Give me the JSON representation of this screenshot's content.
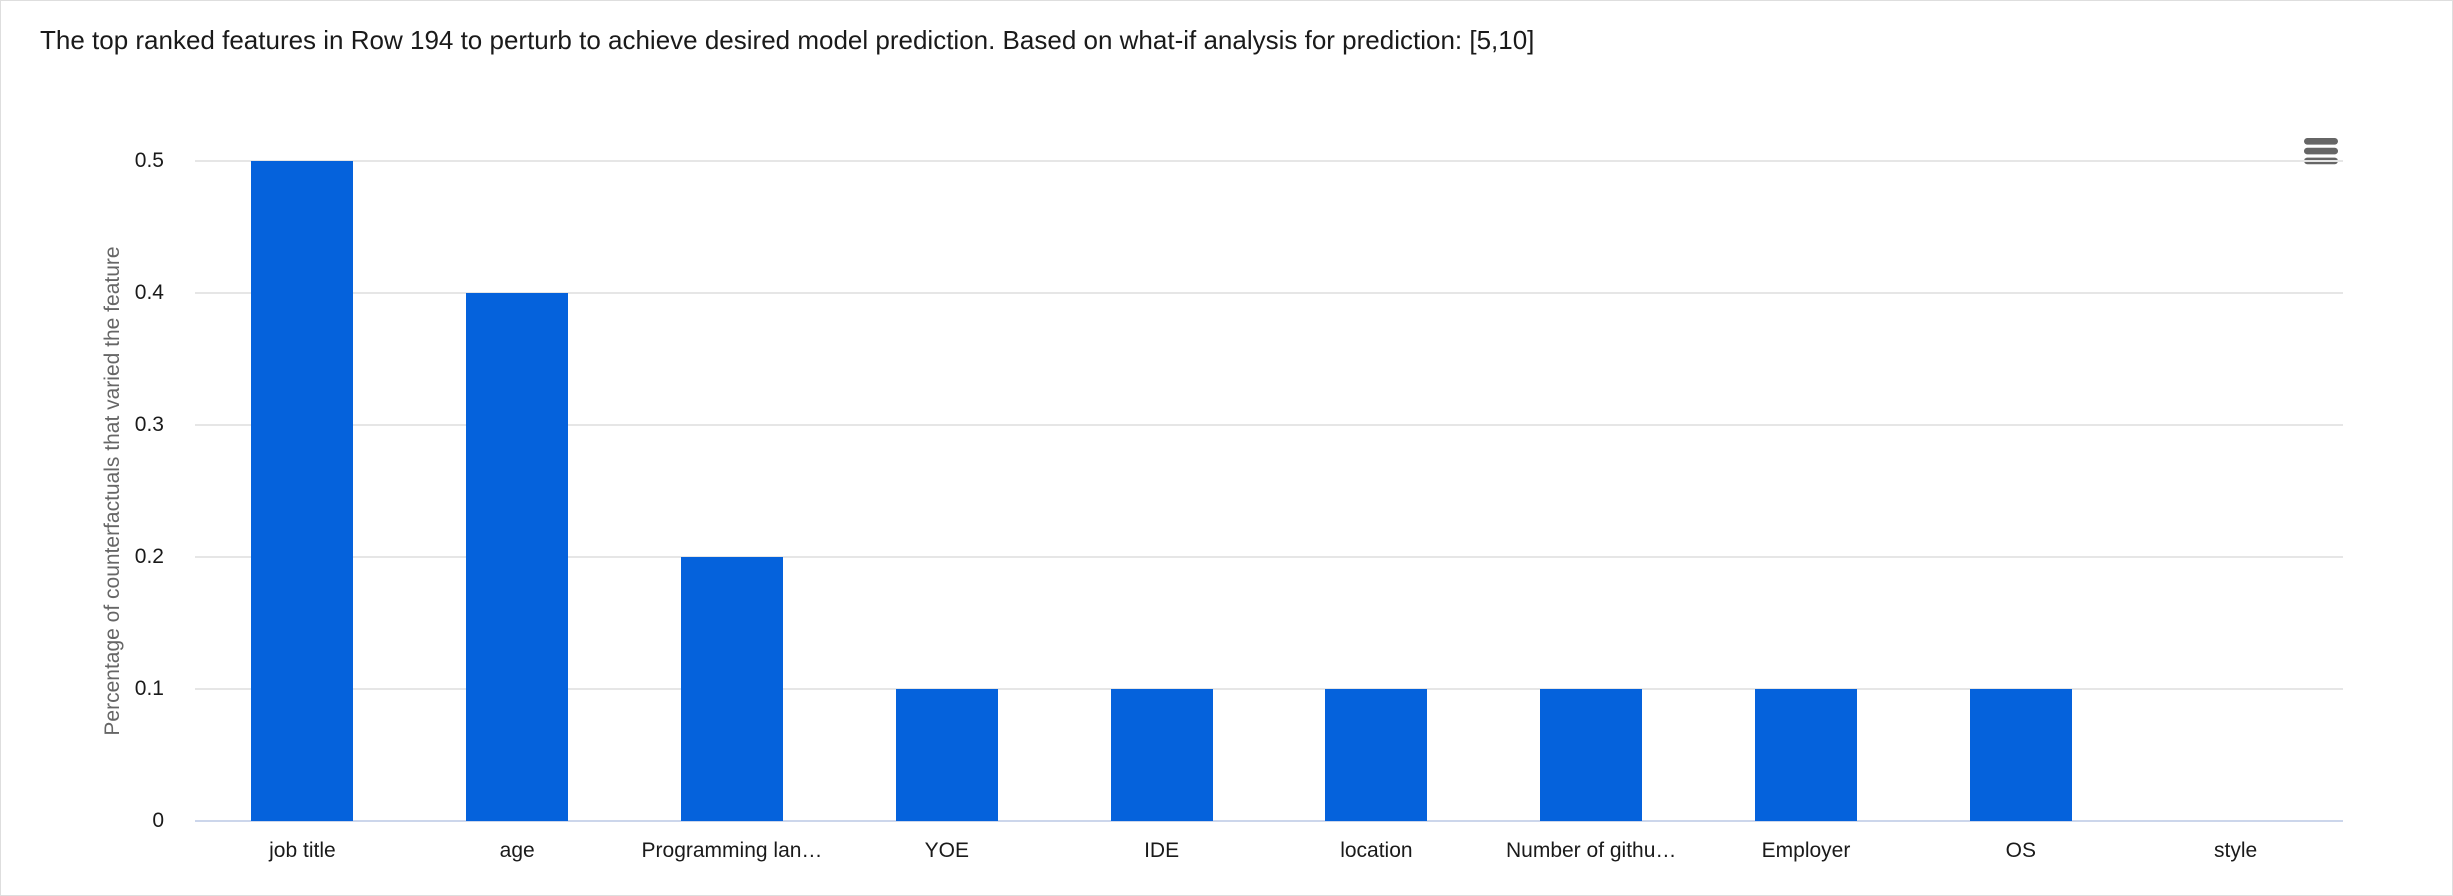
{
  "page": {
    "title": "The top ranked features in Row 194 to perturb to achieve desired model prediction. Based on what-if analysis for prediction: [5,10]"
  },
  "chart_data": {
    "type": "bar",
    "title": "The top ranked features in Row 194 to perturb to achieve desired model prediction. Based on what-if analysis for prediction: [5,10]",
    "categories": [
      "job title",
      "age",
      "Programming lan…",
      "YOE",
      "IDE",
      "location",
      "Number of githu…",
      "Employer",
      "OS",
      "style"
    ],
    "values": [
      0.5,
      0.4,
      0.2,
      0.1,
      0.1,
      0.1,
      0.1,
      0.1,
      0.1,
      0
    ],
    "xlabel": "",
    "ylabel": "Percentage of counterfactuals that varied the feature",
    "ylim": [
      0,
      0.5
    ],
    "yticks": [
      0,
      0.1,
      0.2,
      0.3,
      0.4,
      0.5
    ],
    "grid": true,
    "legend": false
  },
  "colors": {
    "bar": "#0562dc",
    "gridline": "#e6e6e6",
    "axis_line": "#ccd6eb",
    "tick_label": "#1a1a1a",
    "y_axis_title": "#666666",
    "menu_icon": "#666666"
  },
  "toolbar": {
    "menu_icon": "hamburger-menu-icon"
  }
}
